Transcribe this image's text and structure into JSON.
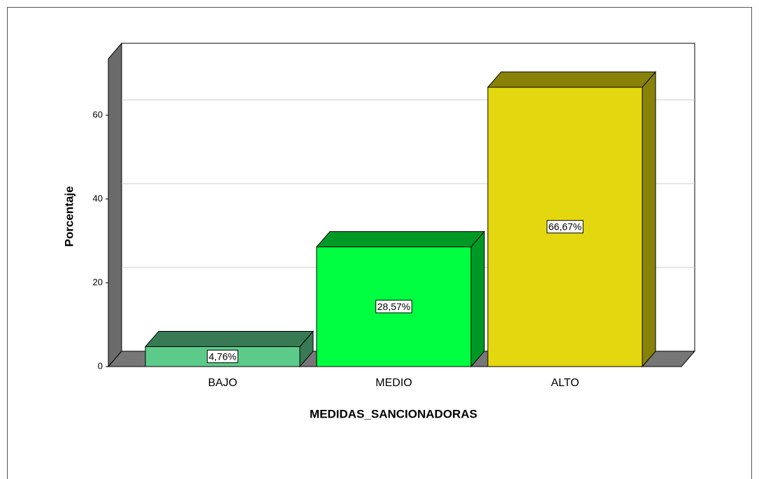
{
  "chart_data": {
    "type": "bar3d",
    "categories": [
      "BAJO",
      "MEDIO",
      "ALTO"
    ],
    "values": [
      4.76,
      28.57,
      66.67
    ],
    "value_labels": [
      "4,76%",
      "28,57%",
      "66,67%"
    ],
    "colors": [
      "#5ccb8a",
      "#00ff40",
      "#e3d80f"
    ],
    "xlabel": "MEDIDAS_SANCIONADORAS",
    "ylabel": "Porcentaje",
    "ylim": [
      0,
      73.5
    ],
    "yticks": [
      0,
      20,
      40,
      60
    ],
    "grid": true
  }
}
